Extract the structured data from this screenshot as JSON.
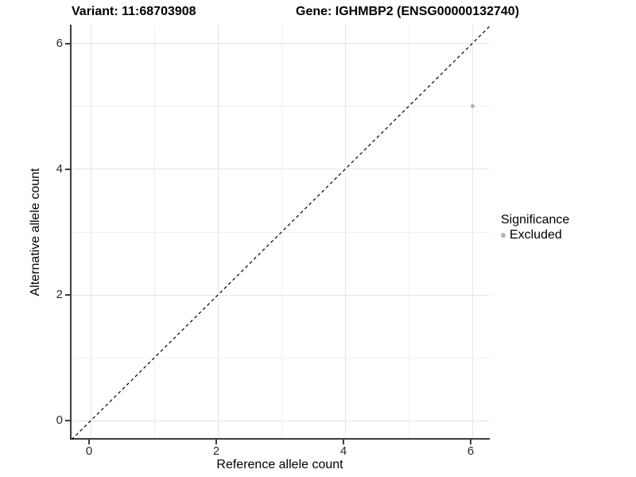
{
  "titles": {
    "variant": "Variant: 11:68703908",
    "gene": "Gene: IGHMBP2 (ENSG00000132740)"
  },
  "chart_data": {
    "type": "scatter",
    "xlabel": "Reference allele count",
    "ylabel": "Alternative allele count",
    "xlim": [
      -0.3,
      6.3
    ],
    "ylim": [
      -0.3,
      6.3
    ],
    "x_ticks": {
      "values": [
        0,
        2,
        4,
        6
      ],
      "labels": [
        "0",
        "2",
        "4",
        "6"
      ]
    },
    "y_ticks": {
      "values": [
        0,
        2,
        4,
        6
      ],
      "labels": [
        "0",
        "2",
        "4",
        "6"
      ]
    },
    "minor_ticks": [
      1,
      3,
      5
    ],
    "grid": true,
    "points": [
      {
        "x": 6,
        "y": 5,
        "series": "Excluded"
      }
    ],
    "reference_line": {
      "slope": 1,
      "intercept": 0,
      "style": "dashed"
    },
    "legend": {
      "title": "Significance",
      "position": "right",
      "items": [
        {
          "label": "Excluded",
          "color": "#b3b3b3"
        }
      ]
    }
  },
  "colors": {
    "point": "#b3b3b3",
    "grid_major": "#e6e6e6",
    "grid_minor": "#f0f0f0",
    "axis_line": "#3c3c3c",
    "reference_line": "#000000",
    "text": "#000000"
  }
}
